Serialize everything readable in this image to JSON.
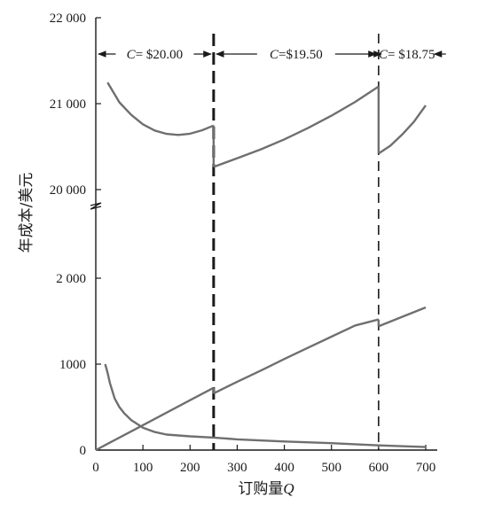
{
  "chart_data": {
    "type": "line",
    "xlabel": "订购量",
    "xlabel_var": "Q",
    "ylabel": "年成本/美元",
    "x_ticks": [
      "0",
      "100",
      "200",
      "300",
      "400",
      "500",
      "600",
      "700"
    ],
    "x_tick_values": [
      0,
      100,
      200,
      300,
      400,
      500,
      600,
      700
    ],
    "xlim": [
      0,
      720
    ],
    "y_upper_ticks": [
      "20 000",
      "21 000",
      "22 000"
    ],
    "y_upper_tick_values": [
      20000,
      21000,
      22000
    ],
    "y_lower_ticks": [
      "0",
      "1000",
      "2 000"
    ],
    "y_lower_tick_values": [
      0,
      1000,
      2000
    ],
    "y_axis_break": true,
    "price_breaks": [
      {
        "x": 250,
        "style": "dashed-bold"
      },
      {
        "x": 600,
        "style": "dashed"
      }
    ],
    "price_ranges": [
      {
        "label": "C= $20.00",
        "from": 0,
        "to": 250
      },
      {
        "label": "C=$19.50",
        "from": 250,
        "to": 600
      },
      {
        "label": "C= $18.75",
        "from": 600,
        "to": 720
      }
    ],
    "series": [
      {
        "segments": [
          {
            "x": [
              25,
              50,
              75,
              100,
              125,
              150,
              175,
              200,
              225,
              250
            ],
            "y": [
              21246,
              21015,
              20870,
              20760,
              20688,
              20648,
              20636,
              20650,
              20690,
              20745
            ]
          },
          {
            "x": [
              250,
              300,
              350,
              400,
              450,
              500,
              550,
              600
            ],
            "y": [
              20264,
              20365,
              20468,
              20585,
              20715,
              20860,
              21020,
              21200
            ]
          },
          {
            "x": [
              600,
              625,
              650,
              675,
              700
            ],
            "y": [
              20420,
              20510,
              20640,
              20790,
              20980
            ]
          }
        ]
      },
      {
        "segments": [
          {
            "x": [
              0,
              50,
              100,
              150,
              200,
              250
            ],
            "y": [
              0,
              145,
              290,
              435,
              580,
              725
            ]
          },
          {
            "x": [
              250,
              300,
              350,
              400,
              450,
              500,
              550,
              600
            ],
            "y": [
              660,
              795,
              925,
              1060,
              1190,
              1320,
              1450,
              1520
            ]
          },
          {
            "x": [
              600,
              650,
              700
            ],
            "y": [
              1440,
              1550,
              1660
            ]
          }
        ]
      },
      {
        "segments": [
          {
            "x": [
              20,
              25,
              30,
              40,
              50,
              60,
              75,
              100,
              125,
              150,
              200,
              250,
              300,
              400,
              500,
              600,
              700
            ],
            "y": [
              1000,
              900,
              780,
              600,
              500,
              430,
              350,
              260,
              210,
              180,
              160,
              145,
              125,
              100,
              80,
              55,
              35
            ]
          }
        ]
      }
    ]
  }
}
